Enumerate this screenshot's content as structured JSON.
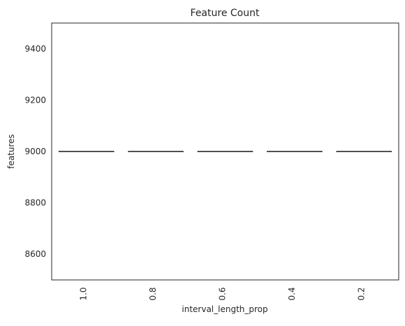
{
  "chart_data": {
    "type": "box",
    "title": "Feature Count",
    "xlabel": "interval_length_prop",
    "ylabel": "features",
    "categories": [
      "1.0",
      "0.8",
      "0.6",
      "0.4",
      "0.2"
    ],
    "values": [
      9000,
      9000,
      9000,
      9000,
      9000
    ],
    "ylim": [
      8500,
      9500
    ],
    "yticks": [
      8600,
      8800,
      9000,
      9200,
      9400
    ],
    "ytick_labels": [
      "8600",
      "8800",
      "9000",
      "9200",
      "9400"
    ],
    "grid": false,
    "legend": "none",
    "colors": {
      "axis": "#262626",
      "box_line": "#3f3f3f",
      "text": "#262626"
    }
  }
}
